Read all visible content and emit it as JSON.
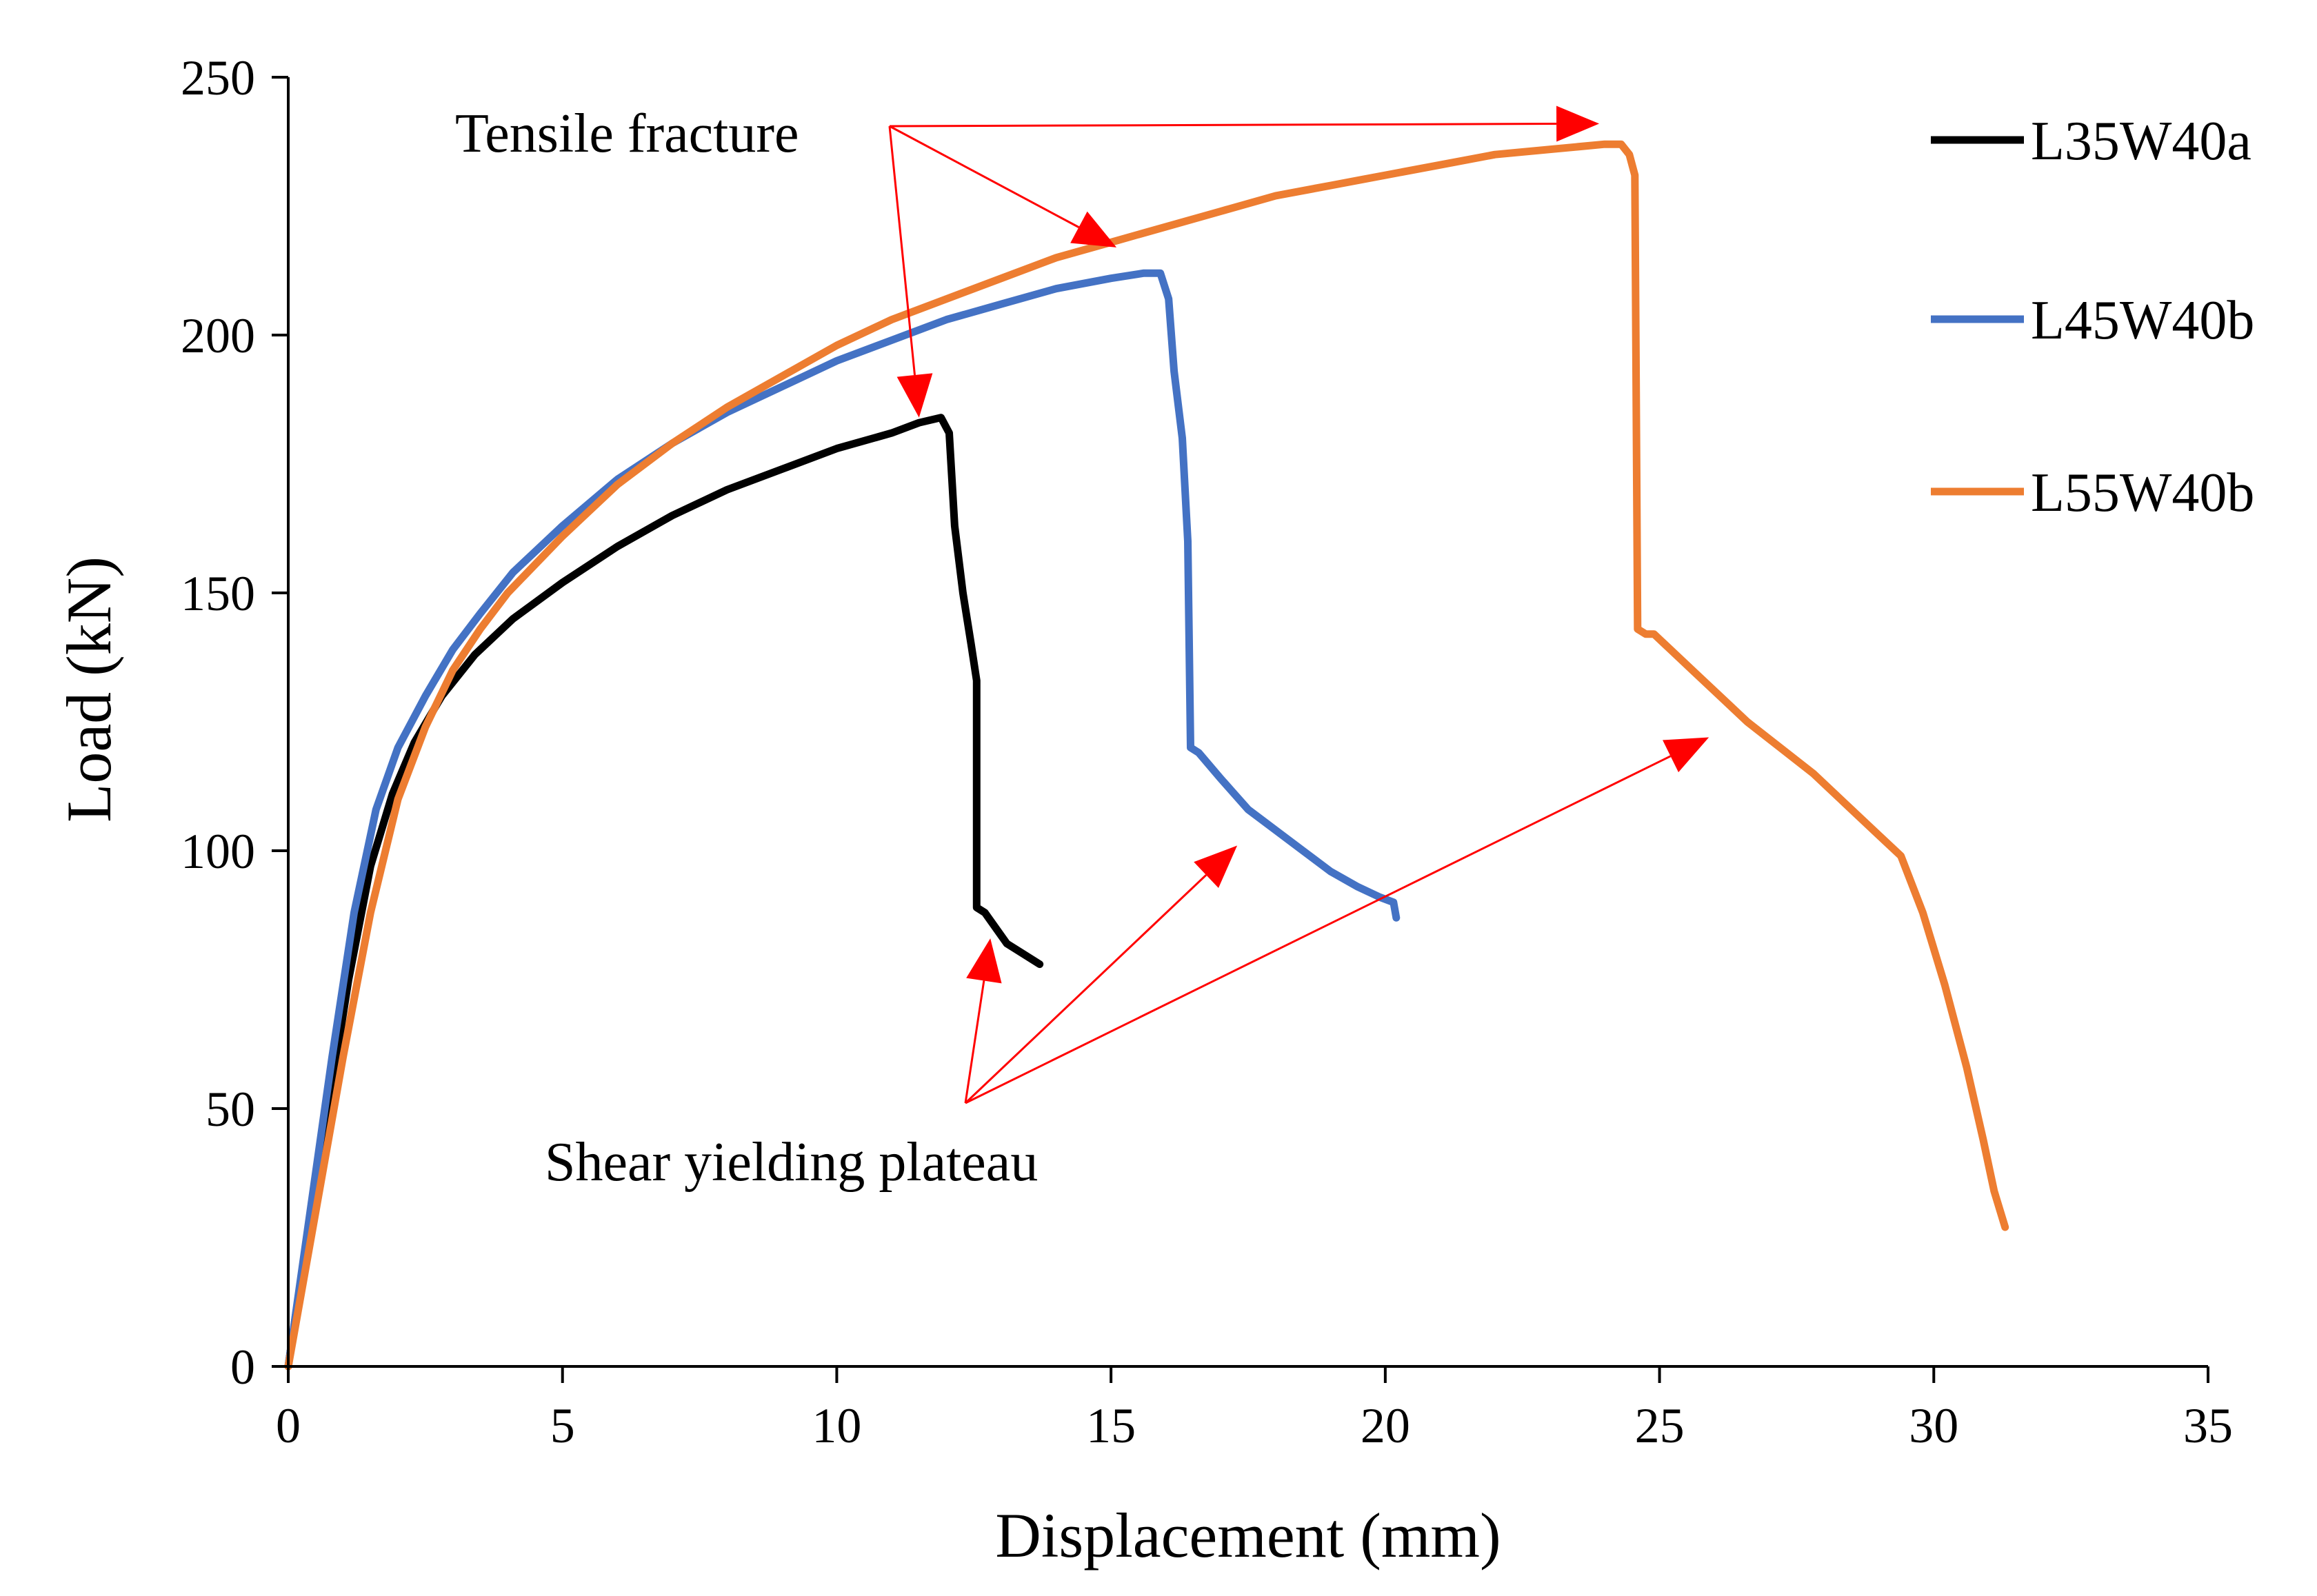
{
  "chart_data": {
    "type": "line",
    "title": "",
    "xlabel": "Displacement (mm)",
    "ylabel": "Load (kN)",
    "xlim": [
      0,
      35
    ],
    "ylim": [
      0,
      250
    ],
    "xticks": [
      0,
      5,
      10,
      15,
      20,
      25,
      30,
      35
    ],
    "yticks": [
      0,
      50,
      100,
      150,
      200,
      250
    ],
    "grid": false,
    "legend_position": "top-right",
    "series": [
      {
        "name": "L35W40a",
        "color": "#000000",
        "x": [
          0,
          0.3,
          0.7,
          1.1,
          1.5,
          1.9,
          2.3,
          2.8,
          3.4,
          4.1,
          5,
          6,
          7,
          8,
          9,
          10,
          11,
          11.5,
          11.9,
          12.05,
          12.15,
          12.3,
          12.45,
          12.55,
          12.55,
          12.7,
          12.9,
          13.1,
          13.4,
          13.7
        ],
        "y": [
          0,
          22,
          48,
          75,
          97,
          111,
          121,
          130,
          138,
          145,
          152,
          159,
          165,
          170,
          174,
          178,
          181,
          183,
          184,
          181,
          163,
          150,
          140,
          133,
          89,
          88,
          85,
          82,
          80,
          78
        ]
      },
      {
        "name": "L45W40b",
        "color": "#4472C4",
        "x": [
          0,
          0.4,
          0.8,
          1.2,
          1.6,
          2,
          2.5,
          3,
          3.5,
          4.1,
          5,
          6,
          7,
          8,
          9,
          10,
          11,
          12,
          13,
          14,
          15,
          15.6,
          15.9,
          16.05,
          16.15,
          16.3,
          16.4,
          16.45,
          16.6,
          17,
          17.5,
          18,
          18.5,
          19,
          19.5,
          19.9,
          20.15,
          20.2
        ],
        "y": [
          0,
          30,
          60,
          88,
          108,
          120,
          130,
          139,
          146,
          154,
          163,
          172,
          179,
          185,
          190,
          195,
          199,
          203,
          206,
          209,
          211,
          212,
          212,
          207,
          193,
          180,
          160,
          120,
          119,
          114,
          108,
          104,
          100,
          96,
          93,
          91,
          90,
          87
        ]
      },
      {
        "name": "L55W40b",
        "color": "#ED7D31",
        "x": [
          0,
          0.5,
          1,
          1.5,
          2,
          2.5,
          3,
          3.5,
          4,
          5,
          6,
          7,
          8,
          9,
          10,
          11,
          12,
          13,
          14,
          15,
          16,
          17,
          18,
          19,
          20,
          21,
          22,
          23,
          24,
          24.3,
          24.45,
          24.55,
          24.6,
          24.75,
          24.9,
          25.2,
          25.6,
          26.1,
          26.6,
          27.2,
          27.8,
          28.4,
          29,
          29.4,
          29.8,
          30.2,
          30.6,
          30.9,
          31.1,
          31.3
        ],
        "y": [
          0,
          30,
          60,
          88,
          110,
          124,
          135,
          143,
          150,
          161,
          171,
          179,
          186,
          192,
          198,
          203,
          207,
          211,
          215,
          218,
          221,
          224,
          227,
          229,
          231,
          233,
          235,
          236,
          237,
          237,
          235,
          231,
          143,
          142,
          142,
          139,
          135,
          130,
          125,
          120,
          115,
          109,
          103,
          99,
          88,
          74,
          58,
          44,
          34,
          27
        ]
      }
    ],
    "annotations": [
      {
        "text": "Tensile fracture",
        "arrow_targets": [
          [
            11.5,
            184
          ],
          [
            15.1,
            217
          ],
          [
            23.9,
            241
          ]
        ]
      },
      {
        "text": "Shear yielding plateau",
        "arrow_targets": [
          [
            12.8,
            83
          ],
          [
            17.3,
            101
          ],
          [
            25.9,
            122
          ]
        ]
      }
    ]
  }
}
